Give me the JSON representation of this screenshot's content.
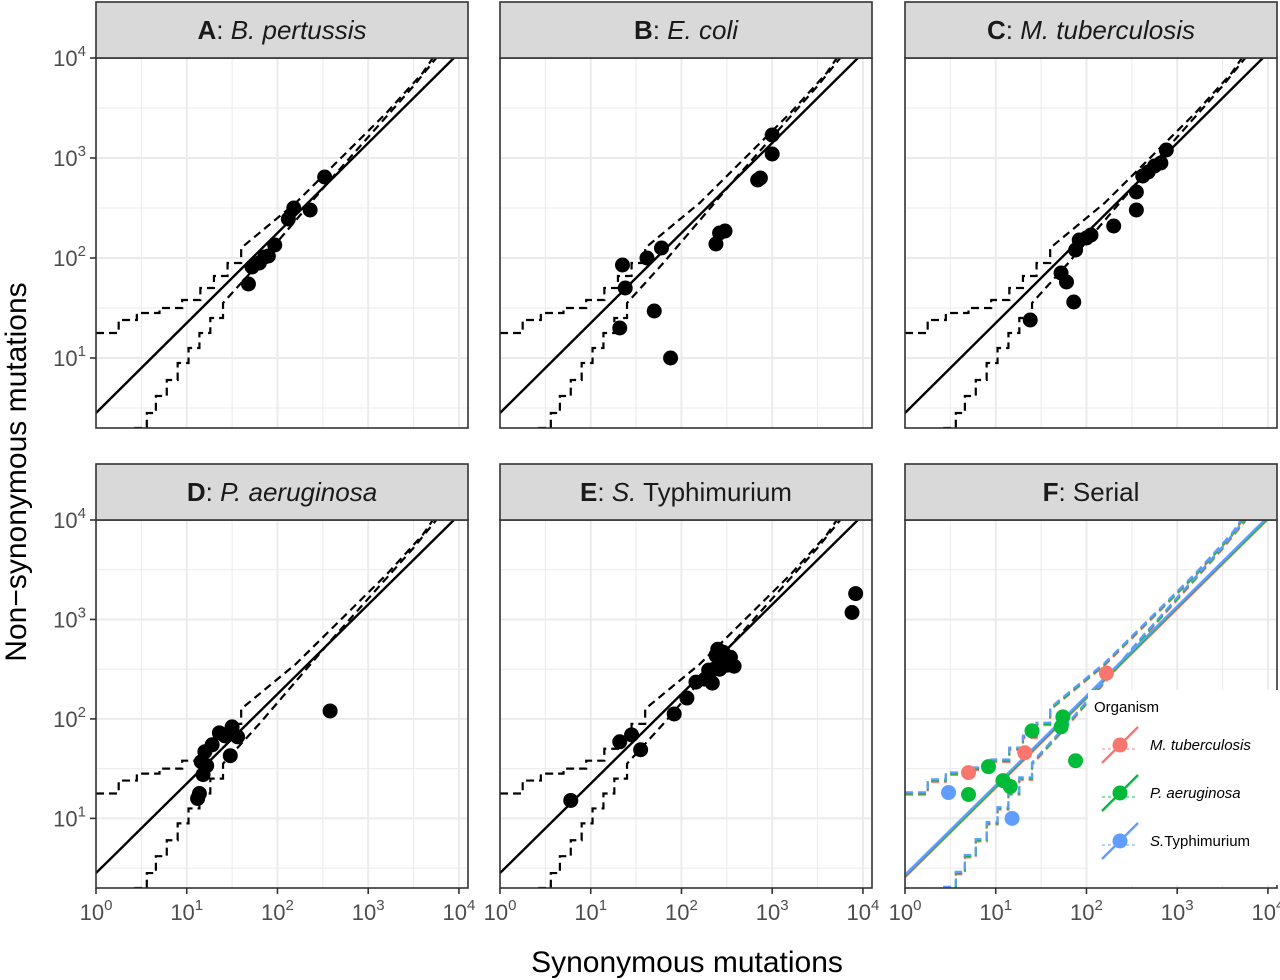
{
  "axes": {
    "xlabel": "Synonymous mutations",
    "ylabel": "Non−synonymous mutations",
    "xlim_log10": [
      0,
      4.1
    ],
    "ylim_log10": [
      0.3,
      4.0
    ],
    "scale": "log10",
    "x_ticks": [
      {
        "base": "10",
        "exp": "0",
        "v": 0
      },
      {
        "base": "10",
        "exp": "1",
        "v": 1
      },
      {
        "base": "10",
        "exp": "2",
        "v": 2
      },
      {
        "base": "10",
        "exp": "3",
        "v": 3
      },
      {
        "base": "10",
        "exp": "4",
        "v": 4
      }
    ],
    "y_ticks": [
      {
        "base": "10",
        "exp": "1",
        "v": 1
      },
      {
        "base": "10",
        "exp": "2",
        "v": 2
      },
      {
        "base": "10",
        "exp": "3",
        "v": 3
      },
      {
        "base": "10",
        "exp": "4",
        "v": 4
      }
    ]
  },
  "colors": {
    "panel_bg": "#ffffff",
    "grid": "#ebebeb",
    "strip_bg": "#d9d9d9",
    "points": "#000000",
    "M. tuberculosis": "#F8766D",
    "P. aeruginosa": "#00BA38",
    "S.Typhimurium": "#619CFF"
  },
  "legend": {
    "title": "Organism",
    "placement": "bottom-right of panel F",
    "entries": [
      {
        "key": "M. tuberculosis",
        "label": "M. tuberculosis",
        "italic": true
      },
      {
        "key": "P. aeruginosa",
        "label": "P. aeruginosa",
        "italic": true
      },
      {
        "key": "S.Typhimurium",
        "label_italic": "S.",
        "label_plain": "Typhimurium"
      }
    ]
  },
  "chart_data": [
    {
      "type": "scatter",
      "panel": "A",
      "strip": {
        "letter": "A",
        "sep": ": ",
        "italic": "B. pertussis",
        "plain": ""
      },
      "x_log10": [
        1.68,
        1.72,
        1.8,
        1.86,
        1.9,
        1.97,
        2.12,
        2.18,
        2.36,
        2.52
      ],
      "y_log10": [
        1.74,
        1.91,
        1.95,
        2.01,
        2.02,
        2.13,
        2.39,
        2.5,
        2.48,
        2.81
      ],
      "reference": {
        "solid_intercept": 0.45,
        "solid_slope": 0.9,
        "dashed_upper_floor": 1.25,
        "dashed_lower_start": 0.3
      }
    },
    {
      "type": "scatter",
      "panel": "B",
      "strip": {
        "letter": "B",
        "sep": ": ",
        "italic": "E. coli",
        "plain": ""
      },
      "x_log10": [
        1.32,
        1.35,
        1.38,
        1.62,
        1.7,
        1.78,
        1.88,
        2.38,
        2.42,
        2.48,
        2.84,
        2.87,
        3.0,
        3.0
      ],
      "y_log10": [
        1.3,
        1.93,
        1.7,
        2.0,
        1.47,
        2.1,
        1.0,
        2.14,
        2.25,
        2.27,
        2.78,
        2.8,
        3.04,
        3.23
      ],
      "reference": {
        "solid_intercept": 0.45,
        "solid_slope": 0.9,
        "dashed_upper_floor": 1.25,
        "dashed_lower_start": 0.3
      }
    },
    {
      "type": "scatter",
      "panel": "C",
      "strip": {
        "letter": "C",
        "sep": ": ",
        "italic": "M. tuberculosis",
        "plain": ""
      },
      "x_log10": [
        1.38,
        1.72,
        1.78,
        1.86,
        1.88,
        1.92,
        2.0,
        2.05,
        2.3,
        2.55,
        2.55,
        2.62,
        2.68,
        2.75,
        2.82,
        2.88
      ],
      "y_log10": [
        1.38,
        1.85,
        1.76,
        1.56,
        2.08,
        2.18,
        2.2,
        2.23,
        2.32,
        2.48,
        2.66,
        2.82,
        2.86,
        2.92,
        2.95,
        3.08
      ],
      "reference": {
        "solid_intercept": 0.45,
        "solid_slope": 0.9,
        "dashed_upper_floor": 1.25,
        "dashed_lower_start": 0.3
      }
    },
    {
      "type": "scatter",
      "panel": "D",
      "strip": {
        "letter": "D",
        "sep": ": ",
        "italic": "P. aeruginosa",
        "plain": ""
      },
      "x_log10": [
        1.12,
        1.14,
        1.16,
        1.18,
        1.2,
        1.22,
        1.28,
        1.36,
        1.42,
        1.48,
        1.5,
        1.56,
        2.58
      ],
      "y_log10": [
        1.2,
        1.25,
        1.57,
        1.44,
        1.67,
        1.53,
        1.74,
        1.86,
        1.83,
        1.63,
        1.92,
        1.82,
        2.08
      ],
      "reference": {
        "solid_intercept": 0.45,
        "solid_slope": 0.9,
        "dashed_upper_floor": 1.25,
        "dashed_lower_start": 0.3
      }
    },
    {
      "type": "scatter",
      "panel": "E",
      "strip": {
        "letter": "E",
        "sep": ": ",
        "italic": "S.",
        "plain": " Typhimurium"
      },
      "x_log10": [
        0.78,
        1.32,
        1.45,
        1.55,
        1.92,
        2.06,
        2.16,
        2.26,
        2.3,
        2.34,
        2.36,
        2.38,
        2.4,
        2.42,
        2.44,
        2.46,
        2.5,
        2.54,
        2.58,
        3.88,
        3.92
      ],
      "y_log10": [
        1.18,
        1.77,
        1.84,
        1.69,
        2.05,
        2.21,
        2.37,
        2.4,
        2.49,
        2.36,
        2.5,
        2.64,
        2.7,
        2.5,
        2.58,
        2.67,
        2.54,
        2.62,
        2.53,
        3.07,
        3.26
      ],
      "reference": {
        "solid_intercept": 0.45,
        "solid_slope": 0.9,
        "dashed_upper_floor": 1.25,
        "dashed_lower_start": 0.3
      }
    },
    {
      "type": "scatter",
      "panel": "F",
      "strip": {
        "letter": "F",
        "sep": ": ",
        "italic": "",
        "plain": "Serial"
      },
      "series": [
        {
          "name": "M. tuberculosis",
          "x_log10": [
            0.7,
            1.32,
            2.22
          ],
          "y_log10": [
            1.46,
            1.66,
            2.46
          ]
        },
        {
          "name": "P. aeruginosa",
          "x_log10": [
            0.7,
            0.92,
            1.08,
            1.16,
            1.4,
            1.72,
            1.74,
            1.88
          ],
          "y_log10": [
            1.24,
            1.52,
            1.38,
            1.32,
            1.88,
            1.92,
            2.02,
            1.58
          ]
        },
        {
          "name": "S.Typhimurium",
          "x_log10": [
            0.48,
            1.18
          ],
          "y_log10": [
            1.26,
            1.0
          ]
        }
      ],
      "reference": {
        "solid_intercept": 0.42,
        "solid_slope": 0.9,
        "dashed_upper_floor": 1.25,
        "dashed_lower_start": 0.3
      }
    }
  ]
}
